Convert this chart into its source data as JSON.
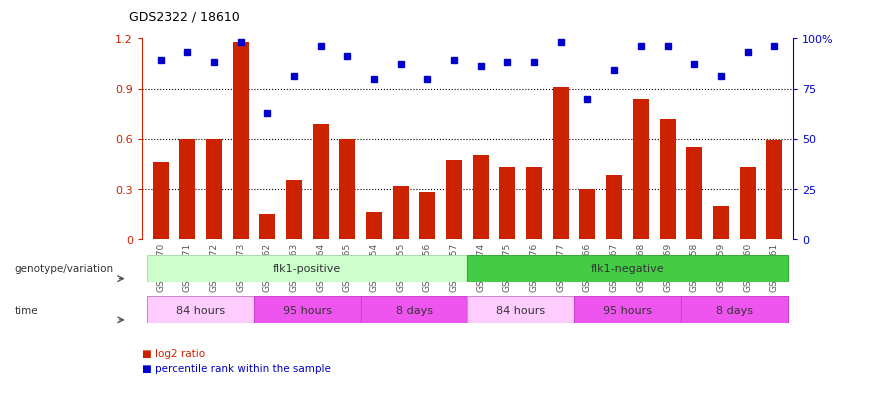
{
  "title": "GDS2322 / 18610",
  "samples": [
    "GSM86370",
    "GSM86371",
    "GSM86372",
    "GSM86373",
    "GSM86362",
    "GSM86363",
    "GSM86364",
    "GSM86365",
    "GSM86354",
    "GSM86355",
    "GSM86356",
    "GSM86357",
    "GSM86374",
    "GSM86375",
    "GSM86376",
    "GSM86377",
    "GSM86366",
    "GSM86367",
    "GSM86368",
    "GSM86369",
    "GSM86358",
    "GSM86359",
    "GSM86360",
    "GSM86361"
  ],
  "log2_ratio": [
    0.46,
    0.6,
    0.6,
    1.18,
    0.15,
    0.35,
    0.69,
    0.6,
    0.16,
    0.32,
    0.28,
    0.47,
    0.5,
    0.43,
    0.43,
    0.91,
    0.3,
    0.38,
    0.84,
    0.72,
    0.55,
    0.2,
    0.43,
    0.59
  ],
  "percentile_rank": [
    89,
    93,
    88,
    98,
    63,
    81,
    96,
    91,
    80,
    87,
    80,
    89,
    86,
    88,
    88,
    98,
    70,
    84,
    96,
    96,
    87,
    81,
    93,
    96
  ],
  "bar_color": "#cc2200",
  "dot_color": "#0000cc",
  "bg_color": "#ffffff",
  "axis_color": "#cc2200",
  "right_axis_color": "#0000cc",
  "ylim_left": [
    0,
    1.2
  ],
  "ylim_right": [
    0,
    100
  ],
  "yticks_left": [
    0,
    0.3,
    0.6,
    0.9,
    1.2
  ],
  "yticks_right": [
    0,
    25,
    50,
    75,
    100
  ],
  "ytick_labels_left": [
    "0",
    "0.3",
    "0.6",
    "0.9",
    "1.2"
  ],
  "ytick_labels_right": [
    "0",
    "25",
    "50",
    "75",
    "100%"
  ],
  "genotype_row": [
    {
      "label": "flk1-positive",
      "start": 0,
      "end": 11,
      "color": "#ccffcc",
      "border": "#aaddaa"
    },
    {
      "label": "flk1-negative",
      "start": 12,
      "end": 23,
      "color": "#44cc44",
      "border": "#33aa33"
    }
  ],
  "time_row": [
    {
      "label": "84 hours",
      "start": 0,
      "end": 3,
      "color": "#ffccff",
      "border": "#cc88cc"
    },
    {
      "label": "95 hours",
      "start": 4,
      "end": 7,
      "color": "#ee55ee",
      "border": "#cc44cc"
    },
    {
      "label": "8 days",
      "start": 8,
      "end": 11,
      "color": "#ee55ee",
      "border": "#cc44cc"
    },
    {
      "label": "84 hours",
      "start": 12,
      "end": 15,
      "color": "#ffccff",
      "border": "#cc88cc"
    },
    {
      "label": "95 hours",
      "start": 16,
      "end": 19,
      "color": "#ee55ee",
      "border": "#cc44cc"
    },
    {
      "label": "8 days",
      "start": 20,
      "end": 23,
      "color": "#ee55ee",
      "border": "#cc44cc"
    }
  ],
  "legend_log2": "log2 ratio",
  "legend_pct": "percentile rank within the sample",
  "genotype_label": "genotype/variation",
  "time_label": "time",
  "xticklabel_color": "#555555",
  "n_samples": 24,
  "hgrid_values": [
    0.3,
    0.6,
    0.9
  ]
}
